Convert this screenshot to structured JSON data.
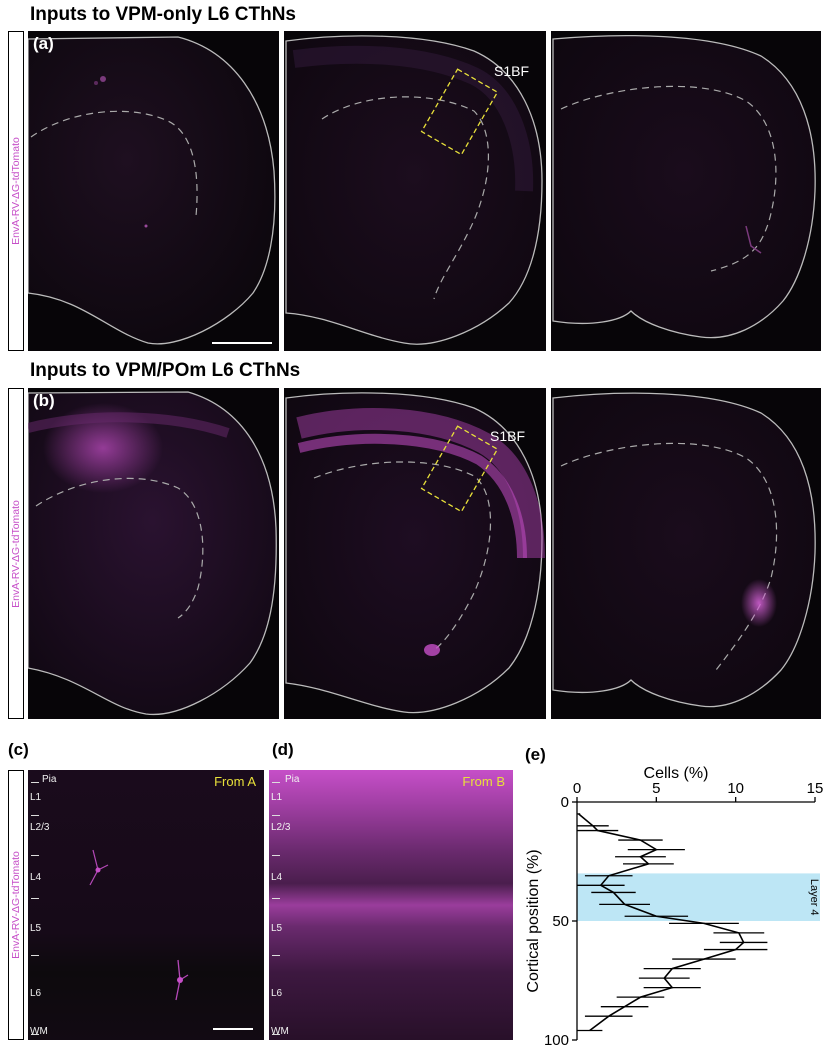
{
  "row_a": {
    "title": "Inputs to VPM-only L6 CThNs",
    "side_label": "EnvA-RV-ΔG-tdTomato",
    "panel_letter": "(a)",
    "roi_label": "S1BF"
  },
  "row_b": {
    "title": "Inputs to VPM/POm L6 CThNs",
    "side_label": "EnvA-RV-ΔG-tdTomato",
    "panel_letter": "(b)",
    "roi_label": "S1BF"
  },
  "panel_c": {
    "letter": "(c)",
    "side_label": "EnvA-RV-ΔG-tdTomato",
    "from_label": "From A",
    "layers": [
      "Pia",
      "L1",
      "L2/3",
      "L4",
      "L5",
      "L6",
      "WM"
    ]
  },
  "panel_d": {
    "letter": "(d)",
    "from_label": "From B",
    "layers": [
      "Pia",
      "L1",
      "L2/3",
      "L4",
      "L5",
      "L6",
      "WM"
    ]
  },
  "panel_e": {
    "letter": "(e)"
  },
  "colors": {
    "tdtomato": "#c64fc8",
    "roi_box": "#e8e03a",
    "layer4_band": "#bde6f5",
    "outline": "#bbbbbb"
  },
  "chart_data": {
    "type": "line",
    "title": "",
    "xlabel": "Cells (%)",
    "ylabel": "Cortical position (%)",
    "xlim": [
      0,
      15
    ],
    "ylim": [
      0,
      100
    ],
    "x_ticks": [
      0,
      5,
      10,
      15
    ],
    "y_ticks": [
      0,
      50,
      100
    ],
    "y_inverted": true,
    "x_axis_position": "top",
    "band": {
      "label": "Layer 4",
      "from": 30,
      "to": 50
    },
    "series": [
      {
        "cells_pct": [
          0.1,
          1.0,
          1.3,
          4.0,
          5.0,
          4.0,
          4.5,
          2.0,
          1.5,
          2.3,
          3.0,
          5.0,
          8.0,
          10.2,
          10.5,
          10.0,
          8.0,
          6.0,
          5.5,
          6.0,
          4.0,
          3.0,
          2.0,
          0.8
        ],
        "position_pct": [
          5,
          10,
          12,
          16,
          20,
          23,
          26,
          31,
          35,
          38,
          43,
          48,
          51,
          55,
          59,
          62,
          66,
          70,
          74,
          78,
          82,
          86,
          90,
          96
        ],
        "error": [
          0.1,
          1.0,
          1.3,
          1.4,
          1.8,
          1.6,
          1.6,
          1.5,
          1.5,
          1.4,
          1.6,
          2.0,
          2.2,
          1.6,
          1.5,
          2.0,
          2.0,
          1.8,
          1.6,
          1.8,
          1.5,
          1.5,
          1.5,
          0.8
        ]
      }
    ]
  }
}
